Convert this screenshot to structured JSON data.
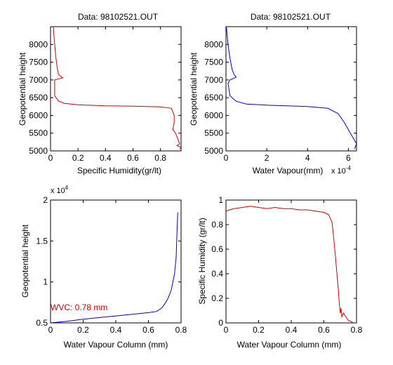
{
  "chart_data": [
    {
      "type": "line",
      "title": "Data: 98102521.OUT",
      "xlabel": "Specific Humidity(gr/lt)",
      "ylabel": "Geopotential height",
      "xlim": [
        0,
        0.95
      ],
      "ylim": [
        5000,
        8500
      ],
      "xticks": [
        0,
        0.2,
        0.4,
        0.6,
        0.8
      ],
      "yticks": [
        5000,
        5500,
        6000,
        6500,
        7000,
        7500,
        8000
      ],
      "color": "#cc0000",
      "x": [
        0.02,
        0.03,
        0.04,
        0.05,
        0.06,
        0.07,
        0.08,
        0.09,
        0.07,
        0.03,
        0.03,
        0.06,
        0.1,
        0.2,
        0.4,
        0.6,
        0.8,
        0.88,
        0.9,
        0.9,
        0.89,
        0.91,
        0.92,
        0.93,
        0.94,
        0.92,
        0.95,
        0.94
      ],
      "y": [
        8500,
        8000,
        7600,
        7300,
        7150,
        7110,
        7080,
        7060,
        7040,
        7000,
        6550,
        6400,
        6340,
        6300,
        6270,
        6260,
        6240,
        6200,
        6000,
        5800,
        5600,
        5500,
        5400,
        5300,
        5200,
        5150,
        5100,
        5050
      ]
    },
    {
      "type": "line",
      "title": "Data: 98102521.OUT",
      "xlabel": "Water Vapour(mm)",
      "ylabel": "Geopotential height",
      "xlim": [
        0,
        0.00064
      ],
      "ylim": [
        5000,
        8500
      ],
      "xticks": [
        0,
        0.0002,
        0.0004,
        0.0006
      ],
      "xticklabels": [
        "0",
        "2",
        "4",
        "6"
      ],
      "xexponent": "x 10",
      "xexponent_power": "-4",
      "yticks": [
        5000,
        5500,
        6000,
        6500,
        7000,
        7500,
        8000
      ],
      "color": "#0000cc",
      "x": [
        2e-06,
        1e-05,
        2e-05,
        3e-05,
        4e-05,
        5e-05,
        4e-05,
        2e-05,
        1e-05,
        2e-05,
        5e-05,
        0.0001,
        0.0002,
        0.0003,
        0.0004,
        0.0005,
        0.00055,
        0.00058,
        0.0006,
        0.00061,
        0.00062,
        0.00063,
        0.00064,
        0.00063
      ],
      "y": [
        8500,
        8000,
        7600,
        7300,
        7150,
        7080,
        7050,
        7000,
        6900,
        6550,
        6400,
        6320,
        6290,
        6270,
        6250,
        6200,
        6050,
        5800,
        5600,
        5500,
        5400,
        5300,
        5200,
        5050
      ]
    },
    {
      "type": "line",
      "title": "",
      "xlabel": "Water Vapour Column (mm)",
      "ylabel": "Geopotential height",
      "xlim": [
        0,
        0.8
      ],
      "ylim": [
        5000,
        20000
      ],
      "xticks": [
        0,
        0.2,
        0.4,
        0.6,
        0.8
      ],
      "yticks": [
        5000,
        10000,
        15000,
        20000
      ],
      "yticklabels": [
        "0.5",
        "1",
        "1.5",
        "2"
      ],
      "yexponent": "x 10",
      "yexponent_power": "4",
      "color": "#0000cc",
      "annotation": "WVC: 0.78 mm",
      "annotation_color": "#cc0000",
      "x": [
        0.0,
        0.1,
        0.2,
        0.3,
        0.4,
        0.5,
        0.6,
        0.65,
        0.68,
        0.7,
        0.72,
        0.74,
        0.76,
        0.77,
        0.775,
        0.78
      ],
      "y": [
        5000,
        5200,
        5450,
        5650,
        5850,
        6050,
        6250,
        6400,
        6800,
        7300,
        8000,
        9000,
        11000,
        13000,
        16000,
        18500
      ]
    },
    {
      "type": "line",
      "title": "",
      "xlabel": "Water Vapour Column (mm)",
      "ylabel": "Specific Humidity (gr/lt)",
      "xlim": [
        0,
        0.8
      ],
      "ylim": [
        0,
        1
      ],
      "xticks": [
        0,
        0.2,
        0.4,
        0.6,
        0.8
      ],
      "yticks": [
        0,
        0.2,
        0.4,
        0.6,
        0.8,
        1
      ],
      "color": "#cc0000",
      "x": [
        0.0,
        0.02,
        0.05,
        0.1,
        0.15,
        0.2,
        0.25,
        0.3,
        0.35,
        0.4,
        0.45,
        0.5,
        0.55,
        0.6,
        0.63,
        0.65,
        0.66,
        0.67,
        0.68,
        0.69,
        0.695,
        0.7,
        0.705,
        0.71,
        0.72,
        0.73,
        0.74,
        0.75,
        0.77,
        0.78
      ],
      "y": [
        0.91,
        0.92,
        0.93,
        0.94,
        0.95,
        0.94,
        0.93,
        0.94,
        0.93,
        0.93,
        0.92,
        0.92,
        0.91,
        0.9,
        0.88,
        0.82,
        0.7,
        0.55,
        0.4,
        0.25,
        0.15,
        0.08,
        0.12,
        0.05,
        0.08,
        0.06,
        0.04,
        0.02,
        0.01,
        0.0
      ]
    }
  ]
}
